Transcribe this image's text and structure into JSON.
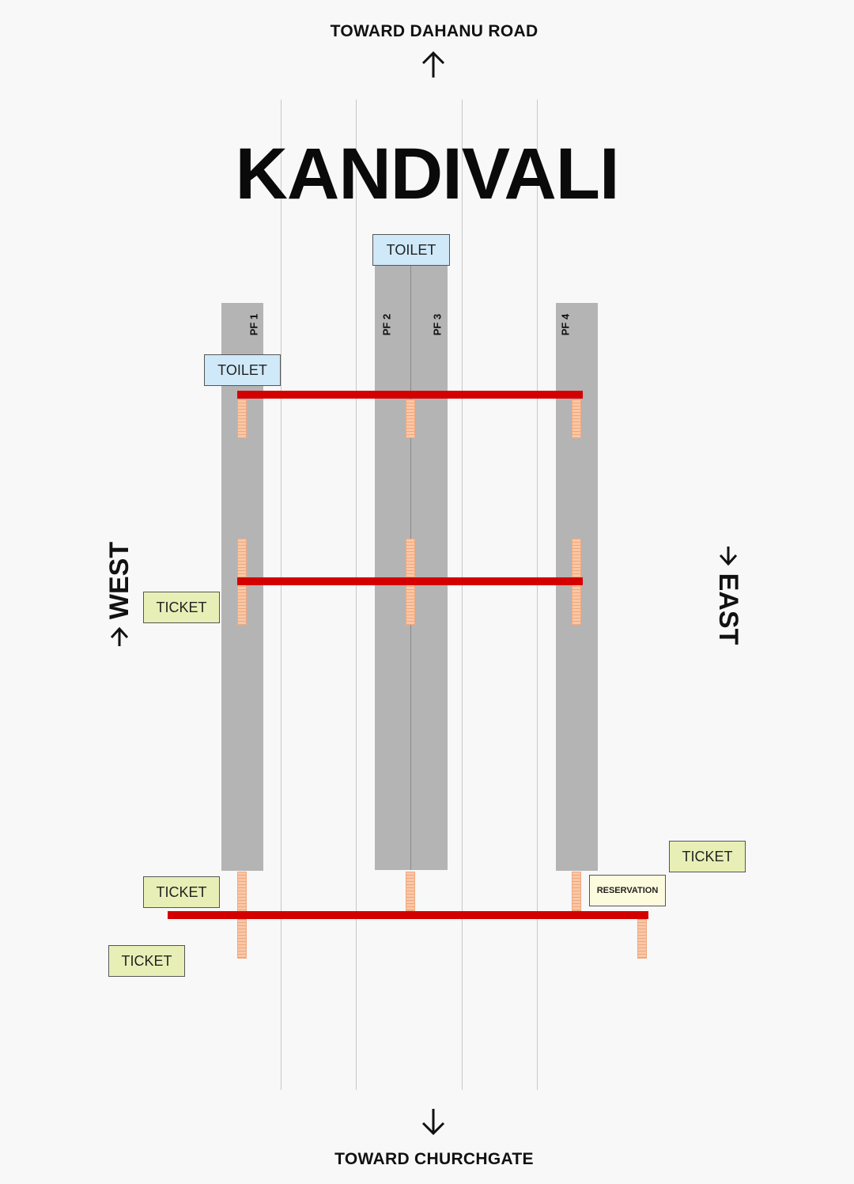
{
  "directions": {
    "north": "TOWARD DAHANU ROAD",
    "south": "TOWARD CHURCHGATE",
    "west": "WEST",
    "east": "EAST"
  },
  "station_name": "KANDIVALI",
  "platforms": [
    {
      "label": "PF 1"
    },
    {
      "label": "PF 2"
    },
    {
      "label": "PF 3"
    },
    {
      "label": "PF 4"
    }
  ],
  "facilities": {
    "toilet_top": "TOILET",
    "toilet_pf1": "TOILET",
    "ticket_west_mid": "TICKET",
    "ticket_west_lower": "TICKET",
    "ticket_west_bottom": "TICKET",
    "ticket_east": "TICKET",
    "reservation": "RESERVATION"
  },
  "colors": {
    "bridge": "#d40000",
    "platform": "#b4b4b4",
    "stairs": "#f8c8a8",
    "toilet": "#cfe9f9",
    "ticket": "#e8efb6",
    "reservation": "#fcfbdd"
  }
}
